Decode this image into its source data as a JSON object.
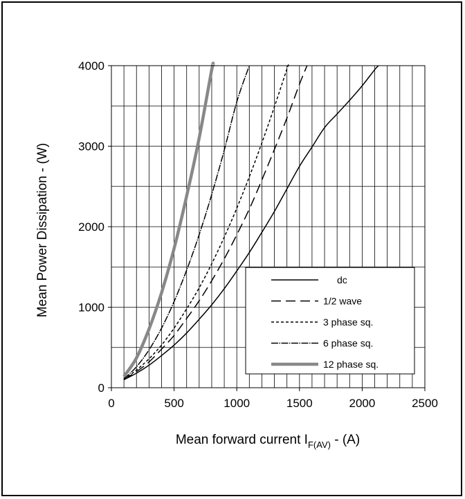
{
  "chart_data": {
    "type": "line",
    "title": "",
    "ylabel": "Mean Power Dissipation - (W)",
    "xlabel": {
      "main": "Mean forward current  I",
      "subscript": "F(AV)",
      "suffix": " - (A)"
    },
    "xlim": [
      0,
      2500
    ],
    "ylim": [
      0,
      4000
    ],
    "x_ticks": [
      0,
      500,
      1000,
      1500,
      2000,
      2500
    ],
    "y_ticks": [
      0,
      1000,
      2000,
      3000,
      4000
    ],
    "x_minor_step": 100,
    "y_minor_step": 500,
    "grid": true,
    "legend_position": "bottom-right",
    "series": [
      {
        "name": "dc",
        "style": "solid",
        "color": "#000000",
        "points": [
          [
            100,
            100
          ],
          [
            200,
            180
          ],
          [
            300,
            280
          ],
          [
            400,
            400
          ],
          [
            500,
            530
          ],
          [
            600,
            680
          ],
          [
            700,
            850
          ],
          [
            800,
            1030
          ],
          [
            900,
            1230
          ],
          [
            1000,
            1450
          ],
          [
            1100,
            1680
          ],
          [
            1200,
            1930
          ],
          [
            1300,
            2190
          ],
          [
            1400,
            2470
          ],
          [
            1500,
            2750
          ],
          [
            1600,
            2990
          ],
          [
            1700,
            3230
          ],
          [
            1800,
            3400
          ],
          [
            1900,
            3570
          ],
          [
            2000,
            3750
          ],
          [
            2100,
            3950
          ],
          [
            2130,
            4000
          ]
        ]
      },
      {
        "name": "1/2 wave",
        "style": "long-dash",
        "color": "#000000",
        "points": [
          [
            100,
            100
          ],
          [
            200,
            200
          ],
          [
            300,
            320
          ],
          [
            400,
            480
          ],
          [
            500,
            650
          ],
          [
            600,
            860
          ],
          [
            700,
            1080
          ],
          [
            800,
            1330
          ],
          [
            900,
            1600
          ],
          [
            1000,
            1900
          ],
          [
            1100,
            2220
          ],
          [
            1200,
            2580
          ],
          [
            1300,
            2960
          ],
          [
            1400,
            3350
          ],
          [
            1500,
            3770
          ],
          [
            1560,
            4000
          ]
        ]
      },
      {
        "name": "3 phase sq.",
        "style": "short-dash",
        "color": "#000000",
        "points": [
          [
            100,
            100
          ],
          [
            200,
            220
          ],
          [
            300,
            360
          ],
          [
            400,
            530
          ],
          [
            500,
            740
          ],
          [
            600,
            980
          ],
          [
            700,
            1240
          ],
          [
            800,
            1540
          ],
          [
            900,
            1870
          ],
          [
            1000,
            2230
          ],
          [
            1100,
            2620
          ],
          [
            1200,
            3040
          ],
          [
            1300,
            3490
          ],
          [
            1400,
            3960
          ],
          [
            1410,
            4000
          ]
        ]
      },
      {
        "name": "6 phase sq.",
        "style": "dash-dot",
        "color": "#000000",
        "points": [
          [
            100,
            110
          ],
          [
            200,
            260
          ],
          [
            300,
            470
          ],
          [
            400,
            740
          ],
          [
            500,
            1070
          ],
          [
            600,
            1460
          ],
          [
            700,
            1900
          ],
          [
            800,
            2400
          ],
          [
            900,
            2950
          ],
          [
            1000,
            3550
          ],
          [
            1100,
            4000
          ]
        ]
      },
      {
        "name": "12 phase sq.",
        "style": "thick-solid",
        "color": "#888888",
        "points": [
          [
            100,
            140
          ],
          [
            200,
            370
          ],
          [
            300,
            730
          ],
          [
            400,
            1180
          ],
          [
            500,
            1730
          ],
          [
            600,
            2380
          ],
          [
            700,
            3100
          ],
          [
            800,
            3950
          ],
          [
            810,
            4000
          ]
        ]
      }
    ]
  }
}
